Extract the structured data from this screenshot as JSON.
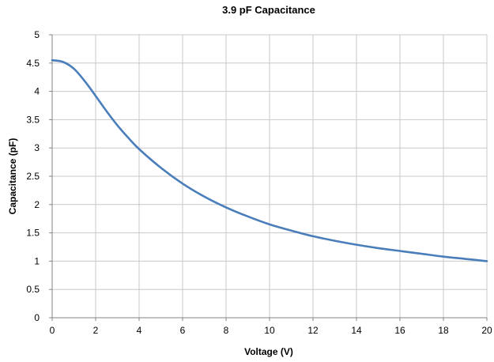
{
  "chart_data": {
    "type": "line",
    "title": "3.9 pF Capacitance",
    "xlabel": "Voltage (V)",
    "ylabel": "Capacitance (pF)",
    "xlim": [
      0,
      20
    ],
    "ylim": [
      0,
      5
    ],
    "xticks": [
      0,
      2,
      4,
      6,
      8,
      10,
      12,
      14,
      16,
      18,
      20
    ],
    "xtick_labels": [
      "0",
      "2",
      "4",
      "6",
      "8",
      "10",
      "12",
      "14",
      "16",
      "18",
      "20"
    ],
    "yticks": [
      0,
      0.5,
      1,
      1.5,
      2,
      2.5,
      3,
      3.5,
      4,
      4.5,
      5
    ],
    "ytick_labels": [
      "0",
      "0.5",
      "1",
      "1.5",
      "2",
      "2.5",
      "3",
      "3.5",
      "4",
      "4.5",
      "5"
    ],
    "grid": true,
    "legend": "none",
    "series": [
      {
        "color": "#4a7ebb",
        "x": [
          0,
          0.5,
          1,
          1.5,
          2,
          2.5,
          3,
          3.5,
          4,
          5,
          6,
          7,
          8,
          9,
          10,
          11,
          12,
          13,
          14,
          15,
          16,
          17,
          18,
          19,
          20
        ],
        "y": [
          4.55,
          4.52,
          4.4,
          4.18,
          3.92,
          3.65,
          3.4,
          3.18,
          2.98,
          2.65,
          2.37,
          2.14,
          1.95,
          1.79,
          1.65,
          1.54,
          1.44,
          1.36,
          1.29,
          1.23,
          1.18,
          1.13,
          1.08,
          1.04,
          1.0
        ]
      }
    ]
  }
}
